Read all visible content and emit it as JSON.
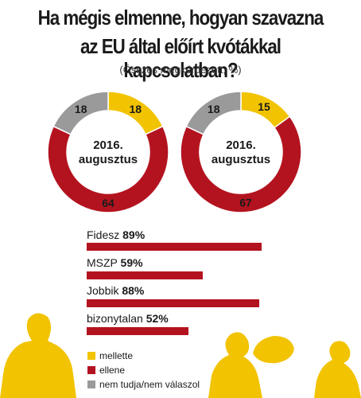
{
  "title_line1": "Ha mégis elmenne, hogyan szavazna",
  "title_line2": "az EU által előírt kvótákkal kapcsolatban?",
  "subtitle": "(Összes megkérdezett, %)",
  "colors": {
    "mellette": "#f2c300",
    "ellene": "#b3131f",
    "nemtudja": "#9a9a9a",
    "silhouette": "#f2c300"
  },
  "chart_data": [
    {
      "type": "pie",
      "center_label_line1": "2016.",
      "center_label_line2": "augusztus",
      "slices": [
        {
          "name": "mellette",
          "value": 18
        },
        {
          "name": "ellene",
          "value": 64
        },
        {
          "name": "nem tudja/nem válaszol",
          "value": 18
        }
      ]
    },
    {
      "type": "pie",
      "center_label_line1": "2016.",
      "center_label_line2": "augusztus",
      "slices": [
        {
          "name": "mellette",
          "value": 15
        },
        {
          "name": "ellene",
          "value": 67
        },
        {
          "name": "nem tudja/nem válaszol",
          "value": 18
        }
      ]
    },
    {
      "type": "bar",
      "categories": [
        "Fidesz",
        "MSZP",
        "Jobbik",
        "bizonytalan"
      ],
      "values": [
        89,
        59,
        88,
        52
      ],
      "value_labels": [
        "89%",
        "59%",
        "88%",
        "52%"
      ],
      "xlim": [
        0,
        100
      ]
    }
  ],
  "legend": [
    {
      "key": "mellette",
      "label": "mellette"
    },
    {
      "key": "ellene",
      "label": "ellene"
    },
    {
      "key": "nemtudja",
      "label": "nem tudja/nem válaszol"
    }
  ]
}
